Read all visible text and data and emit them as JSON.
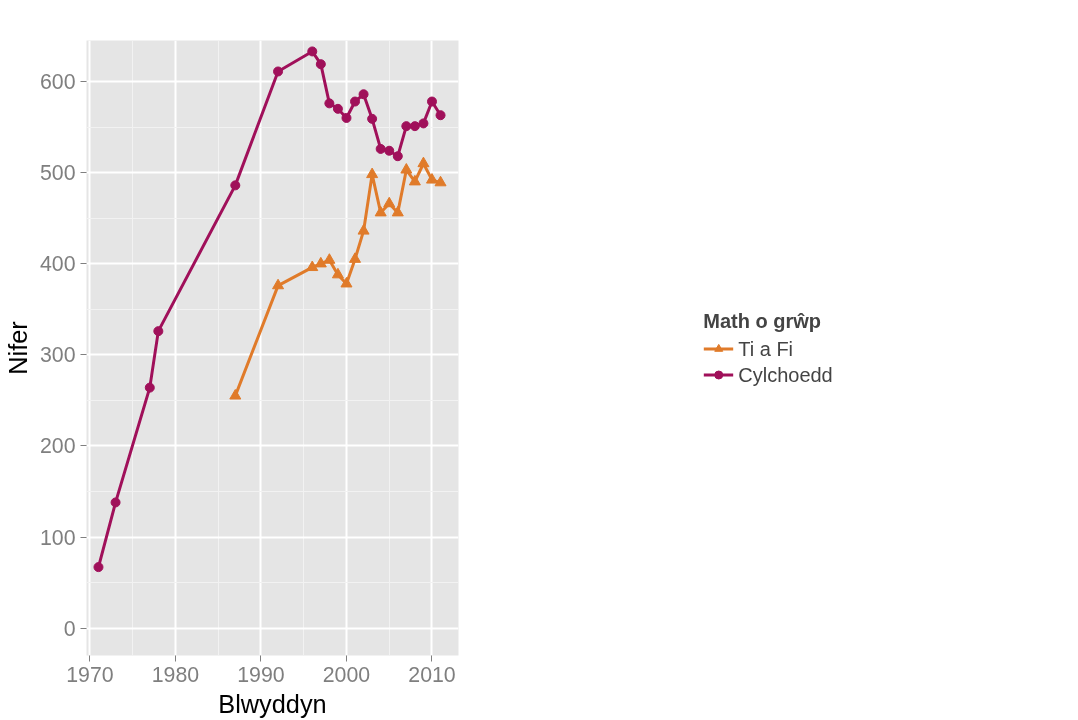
{
  "chart_data": {
    "type": "line",
    "xlabel": "Blwyddyn",
    "ylabel": "Nifer",
    "legend_title": "Math o grŵp",
    "legend": "right",
    "xlim": [
      1969.6,
      2013.1
    ],
    "ylim": [
      -30,
      645
    ],
    "xticks": [
      1970,
      1980,
      1990,
      2000,
      2010
    ],
    "yticks": [
      0,
      100,
      200,
      300,
      400,
      500,
      600
    ],
    "grid": true,
    "series": [
      {
        "name": "Ti a Fi",
        "color": "#e07b2a",
        "marker": "triangle",
        "x": [
          1987,
          1992,
          1996,
          1997,
          1998,
          1999,
          2000,
          2001,
          2002,
          2003,
          2004,
          2005,
          2006,
          2007,
          2008,
          2009,
          2010,
          2011
        ],
        "values": [
          255,
          376,
          396,
          400,
          404,
          388,
          378,
          405,
          436,
          498,
          456,
          466,
          456,
          503,
          490,
          510,
          492,
          489
        ]
      },
      {
        "name": "Cylchoedd",
        "color": "#a0105a",
        "marker": "circle",
        "x": [
          1971,
          1973,
          1977,
          1978,
          1987,
          1992,
          1996,
          1997,
          1998,
          1999,
          2000,
          2001,
          2002,
          2003,
          2004,
          2005,
          2006,
          2007,
          2008,
          2009,
          2010,
          2011
        ],
        "values": [
          67,
          138,
          264,
          326,
          486,
          611,
          633,
          619,
          576,
          570,
          560,
          578,
          586,
          559,
          526,
          524,
          518,
          551,
          551,
          554,
          578,
          563
        ]
      }
    ]
  }
}
